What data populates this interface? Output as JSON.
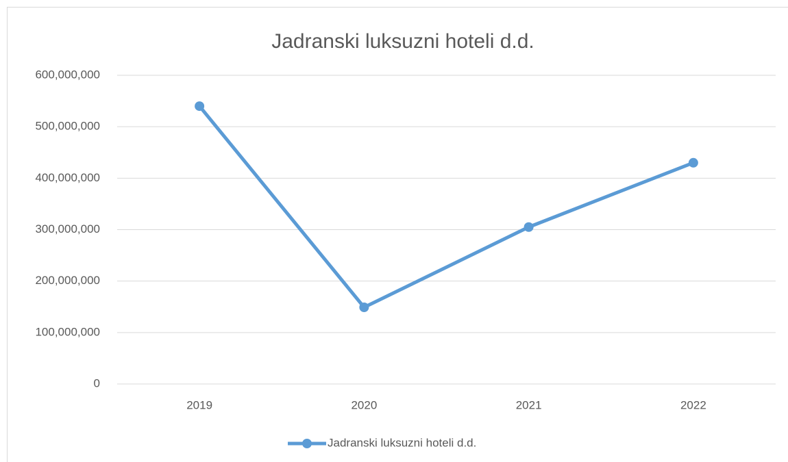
{
  "chart_data": {
    "type": "line",
    "title": "Jadranski luksuzni hoteli d.d.",
    "categories": [
      "2019",
      "2020",
      "2021",
      "2022"
    ],
    "series": [
      {
        "name": "Jadranski luksuzni hoteli d.d.",
        "color": "#5b9bd5",
        "values": [
          540000000,
          149000000,
          305000000,
          430000000
        ]
      }
    ],
    "ylim": [
      0,
      600000000
    ],
    "yticks": [
      0,
      {
        "value": 100000000,
        "label": "100,000,000"
      },
      {
        "value": 200000000,
        "label": "200,000,000"
      },
      {
        "value": 300000000,
        "label": "300,000,000"
      },
      {
        "value": 400000000,
        "label": "400,000,000"
      },
      {
        "value": 500000000,
        "label": "500,000,000"
      },
      {
        "value": 600000000,
        "label": "600,000,000"
      }
    ],
    "grid": true,
    "legend": "bottom"
  }
}
